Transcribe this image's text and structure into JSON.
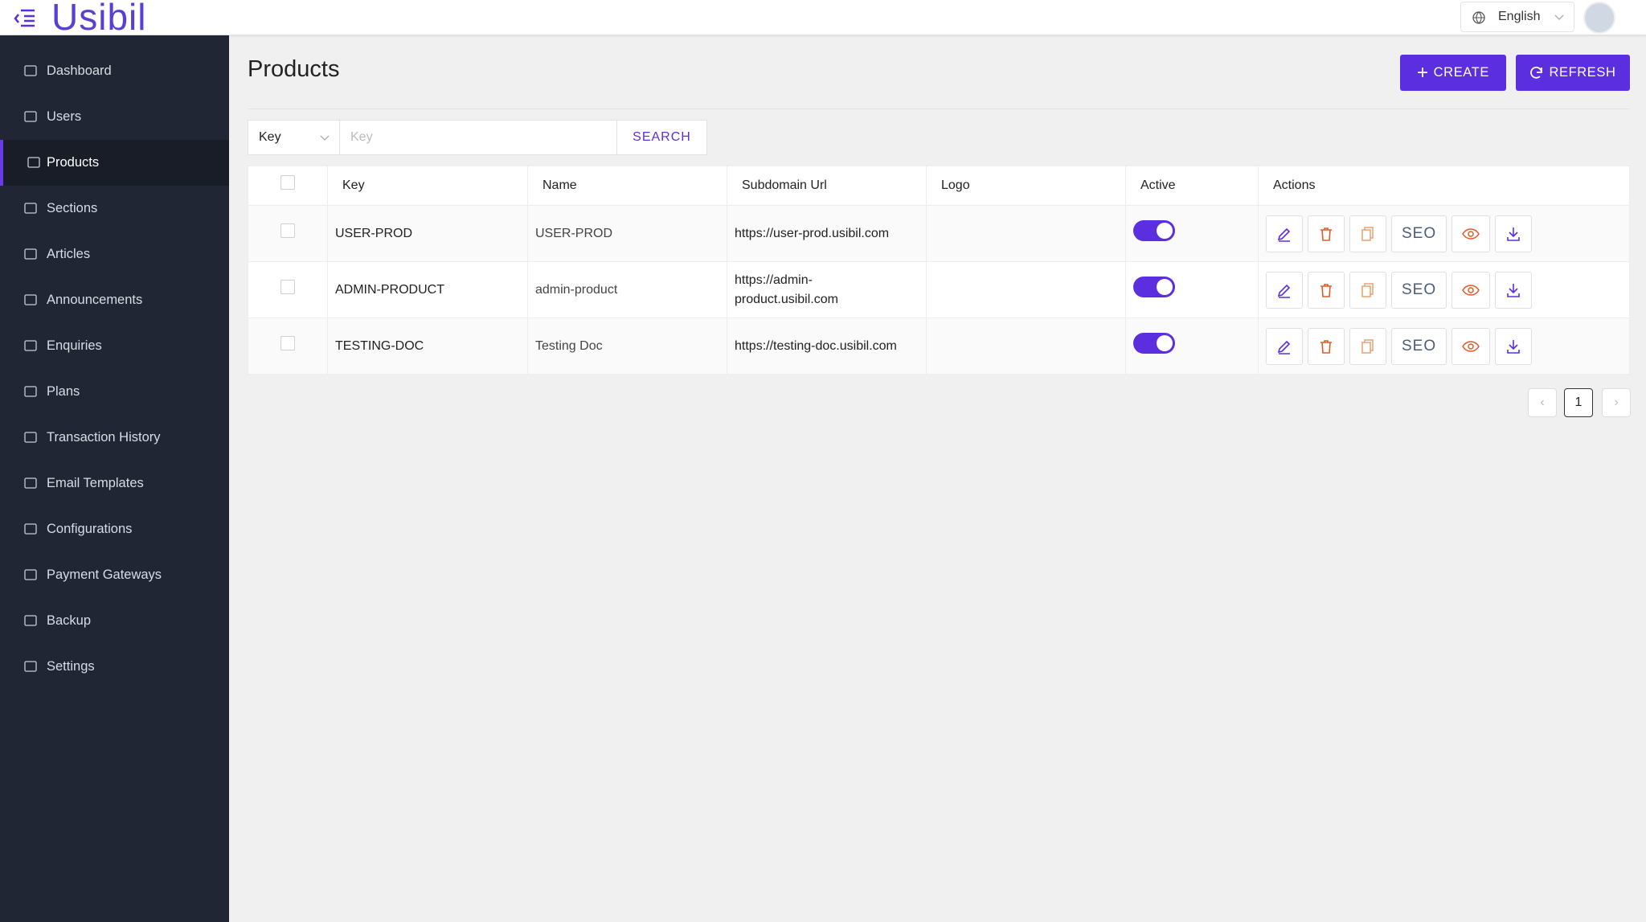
{
  "header": {
    "logo": "Usibil",
    "language": "English"
  },
  "sidebar": {
    "items": [
      "Dashboard",
      "Users",
      "Products",
      "Sections",
      "Articles",
      "Announcements",
      "Enquiries",
      "Plans",
      "Transaction History",
      "Email Templates",
      "Configurations",
      "Payment Gateways",
      "Backup",
      "Settings"
    ],
    "active_index": 2
  },
  "page": {
    "title": "Products",
    "create_button": "CREATE",
    "refresh_button": "REFRESH"
  },
  "search": {
    "field": "Key",
    "placeholder": "Key",
    "button": "SEARCH"
  },
  "table": {
    "columns": [
      "Key",
      "Name",
      "Subdomain Url",
      "Logo",
      "Active",
      "Actions"
    ],
    "rows": [
      {
        "key": "USER-PROD",
        "name": "USER-PROD",
        "subdomain_url": "https://user-prod.usibil.com",
        "active": true
      },
      {
        "key": "ADMIN-PRODUCT",
        "name": "admin-product",
        "subdomain_url": "https://admin-product.usibil.com",
        "active": true
      },
      {
        "key": "TESTING-DOC",
        "name": "Testing Doc",
        "subdomain_url": "https://testing-doc.usibil.com",
        "active": true
      }
    ],
    "seo_label": "SEO"
  },
  "pagination": {
    "current": "1"
  }
}
